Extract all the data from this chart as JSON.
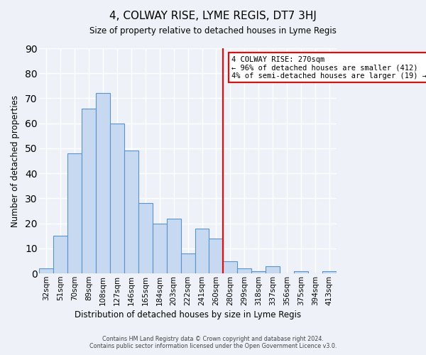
{
  "title": "4, COLWAY RISE, LYME REGIS, DT7 3HJ",
  "subtitle": "Size of property relative to detached houses in Lyme Regis",
  "xlabel": "Distribution of detached houses by size in Lyme Regis",
  "ylabel": "Number of detached properties",
  "bar_labels": [
    "32sqm",
    "51sqm",
    "70sqm",
    "89sqm",
    "108sqm",
    "127sqm",
    "146sqm",
    "165sqm",
    "184sqm",
    "203sqm",
    "222sqm",
    "241sqm",
    "260sqm",
    "280sqm",
    "299sqm",
    "318sqm",
    "337sqm",
    "356sqm",
    "375sqm",
    "394sqm",
    "413sqm"
  ],
  "bar_values": [
    2,
    15,
    48,
    66,
    72,
    60,
    49,
    28,
    20,
    22,
    8,
    18,
    14,
    5,
    2,
    1,
    3,
    0,
    1,
    0,
    1
  ],
  "bar_color": "#c6d9f0",
  "bar_edge_color": "#5a93cc",
  "vline_color": "red",
  "ylim": [
    0,
    90
  ],
  "yticks": [
    0,
    10,
    20,
    30,
    40,
    50,
    60,
    70,
    80,
    90
  ],
  "annotation_title": "4 COLWAY RISE: 270sqm",
  "annotation_line1": "← 96% of detached houses are smaller (412)",
  "annotation_line2": "4% of semi-detached houses are larger (19) →",
  "annotation_box_color": "white",
  "annotation_edge_color": "red",
  "footer_line1": "Contains HM Land Registry data © Crown copyright and database right 2024.",
  "footer_line2": "Contains public sector information licensed under the Open Government Licence v3.0.",
  "background_color": "#eef2f8"
}
